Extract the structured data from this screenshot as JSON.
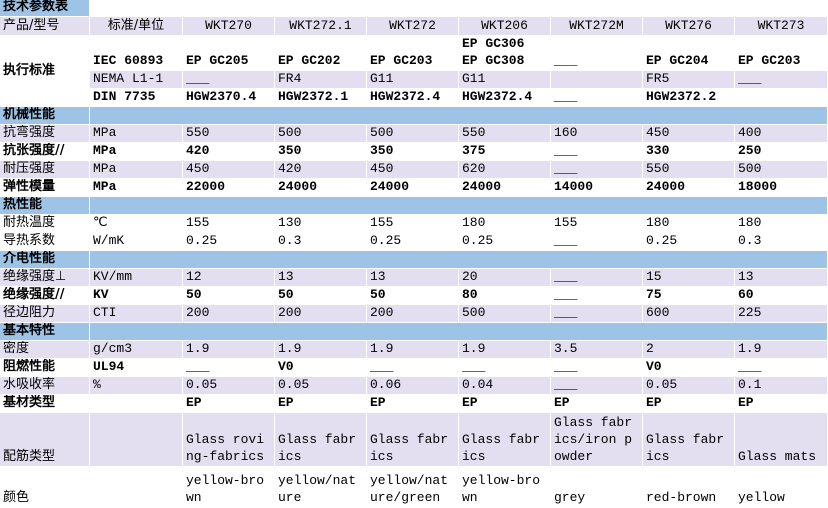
{
  "title": "技术参数表",
  "header": {
    "label": "产品/型号",
    "unit": "标准/单位",
    "products": [
      "WKT270",
      "WKT272.1",
      "WKT272",
      "WKT206",
      "WKT272M",
      "WKT276",
      "WKT273"
    ]
  },
  "standards": {
    "label": "执行标准",
    "rows": [
      {
        "unit": "IEC 60893",
        "values": [
          "EP GC205",
          "EP GC202",
          "EP GC203",
          "EP GC306\nEP GC308",
          "___",
          "EP GC204",
          "EP GC203"
        ]
      },
      {
        "unit": "NEMA L1-1",
        "values": [
          "___",
          "FR4",
          "G11",
          "G11",
          null,
          "FR5",
          "___"
        ]
      },
      {
        "unit": "DIN 7735",
        "values": [
          "HGW2370.4",
          "HGW2372.1",
          "HGW2372.4",
          "HGW2372.4",
          "___",
          "HGW2372.2",
          null
        ]
      }
    ]
  },
  "sections": [
    {
      "title": "机械性能",
      "rows": [
        {
          "label": "抗弯强度",
          "unit": "MPa",
          "values": [
            550,
            500,
            500,
            550,
            160,
            450,
            400
          ]
        },
        {
          "label": "抗张强度//",
          "unit": "MPa",
          "values": [
            420,
            350,
            350,
            375,
            "___",
            330,
            250
          ]
        },
        {
          "label": "耐压强度",
          "unit": "MPa",
          "values": [
            450,
            420,
            450,
            620,
            "___",
            550,
            500
          ]
        },
        {
          "label": "弹性模量",
          "unit": "MPa",
          "values": [
            22000,
            24000,
            24000,
            24000,
            14000,
            24000,
            18000
          ]
        }
      ]
    },
    {
      "title": "热性能",
      "rows": [
        {
          "label": "耐热温度",
          "unit": "℃",
          "values": [
            155,
            130,
            155,
            180,
            155,
            180,
            180
          ]
        },
        {
          "label": "导热系数",
          "unit": "W/mK",
          "values": [
            0.25,
            0.3,
            0.25,
            0.25,
            "___",
            0.25,
            0.3
          ]
        }
      ]
    },
    {
      "title": "介电性能",
      "rows": [
        {
          "label": "绝缘强度⊥",
          "unit": "KV/mm",
          "values": [
            12,
            13,
            13,
            20,
            "___",
            15,
            13
          ]
        },
        {
          "label": "绝缘强度//",
          "unit": "KV",
          "values": [
            50,
            50,
            50,
            80,
            "___",
            75,
            60
          ]
        },
        {
          "label": "径边阻力",
          "unit": "CTI",
          "values": [
            200,
            200,
            200,
            500,
            "___",
            600,
            225
          ]
        }
      ]
    },
    {
      "title": "基本特性",
      "rows": [
        {
          "label": "密度",
          "unit": "g/cm3",
          "values": [
            1.9,
            1.9,
            1.9,
            1.9,
            3.5,
            2,
            1.9
          ]
        },
        {
          "label": "阻燃性能",
          "unit": "UL94",
          "values": [
            "___",
            "V0",
            "___",
            "___",
            "___",
            "V0",
            "___"
          ]
        },
        {
          "label": "水吸收率",
          "unit": "%",
          "values": [
            0.05,
            0.05,
            0.06,
            0.04,
            "___",
            0.05,
            0.1
          ]
        },
        {
          "label": "基材类型",
          "unit": null,
          "values": [
            "EP",
            "EP",
            "EP",
            "EP",
            "EP",
            "EP",
            "EP"
          ]
        },
        {
          "label": "配筋类型",
          "unit": null,
          "values": [
            "Glass roving-fabrics",
            "Glass fabrics",
            "Glass fabrics",
            "Glass fabrics",
            "Glass fabrics/iron powder",
            "Glass fabrics",
            "Glass mats"
          ]
        },
        {
          "label": "颜色",
          "unit": null,
          "values": [
            "yellow-brown",
            "yellow/nature",
            "yellow/nature/green",
            "yellow-brown",
            "grey",
            "red-brown",
            "yellow"
          ]
        }
      ]
    }
  ]
}
